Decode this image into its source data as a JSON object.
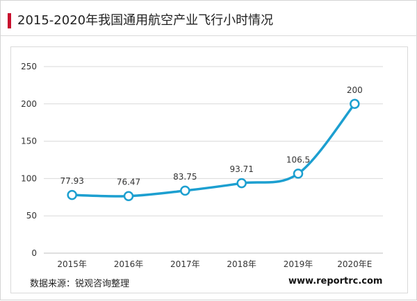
{
  "header": {
    "title": "2015-2020年我国通用航空产业飞行小时情况"
  },
  "footer": {
    "source": "数据来源：锐观咨询整理",
    "website": "www.reportrc.com"
  },
  "colors": {
    "accent": "#c8102e",
    "line": "#1c9fd0",
    "grid": "#d9d9d9"
  },
  "chart_data": {
    "type": "line",
    "title": "",
    "xlabel": "",
    "ylabel": "",
    "categories": [
      "2015年",
      "2016年",
      "2017年",
      "2018年",
      "2019年",
      "2020年E"
    ],
    "series": [
      {
        "values": [
          77.93,
          76.47,
          83.75,
          93.71,
          106.5,
          200
        ],
        "labels": [
          "77.93",
          "76.47",
          "83.75",
          "93.71",
          "106.5",
          "200"
        ]
      }
    ],
    "ylim": [
      0,
      250
    ],
    "yticks": [
      0,
      50,
      100,
      150,
      200,
      250
    ],
    "grid": true,
    "smooth": true,
    "markers": "hollow-circle"
  }
}
